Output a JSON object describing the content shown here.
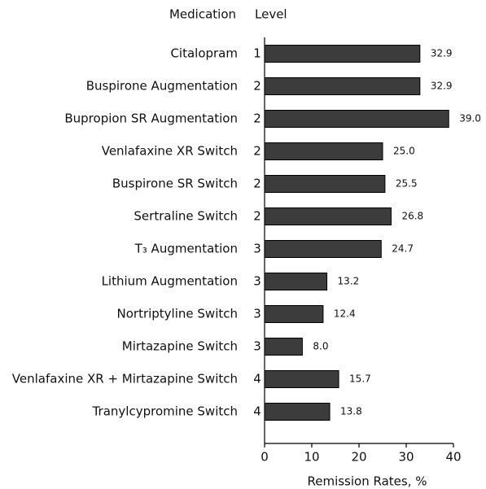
{
  "chart_data": {
    "type": "bar",
    "orientation": "horizontal",
    "column_headers": [
      "Medication",
      "Level"
    ],
    "categories": [
      "Citalopram",
      "Buspirone Augmentation",
      "Bupropion SR Augmentation",
      "Venlafaxine XR Switch",
      "Buspirone SR Switch",
      "Sertraline Switch",
      "T₃ Augmentation",
      "Lithium Augmentation",
      "Nortriptyline Switch",
      "Mirtazapine Switch",
      "Venlafaxine XR + Mirtazapine Switch",
      "Tranylcypromine Switch"
    ],
    "levels": [
      1,
      2,
      2,
      2,
      2,
      2,
      3,
      3,
      3,
      3,
      4,
      4
    ],
    "values": [
      32.9,
      32.9,
      39.0,
      25.0,
      25.5,
      26.8,
      24.7,
      13.2,
      12.4,
      8.0,
      15.7,
      13.8
    ],
    "value_labels": [
      "32.9",
      "32.9",
      "39.0",
      "25.0",
      "25.5",
      "26.8",
      "24.7",
      "13.2",
      "12.4",
      "8.0",
      "15.7",
      "13.8"
    ],
    "color": "#3c3c3c",
    "xlabel": "Remission Rates, %",
    "xlim": [
      0,
      40
    ],
    "xticks": [
      0,
      10,
      20,
      30,
      40
    ],
    "grid": false
  }
}
